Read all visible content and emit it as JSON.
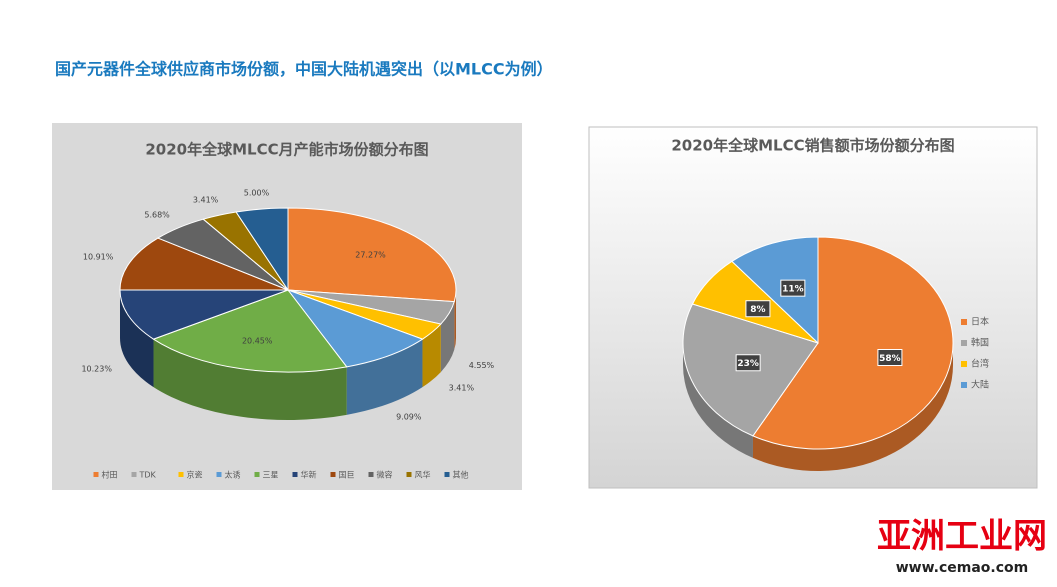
{
  "heading": "国产元器件全球供应商市场份额，中国大陆机遇突出（以MLCC为例）",
  "logo": {
    "name": "亚洲工业网",
    "url": "www.cemao.com"
  },
  "chart_data": [
    {
      "type": "pie",
      "title": "2020年全球MLCC月产能市场份额分布图",
      "categories": [
        "村田",
        "TDK",
        "京瓷",
        "太诱",
        "三星",
        "华新",
        "国巨",
        "微容",
        "风华",
        "其他"
      ],
      "values": [
        27.27,
        4.55,
        3.41,
        9.09,
        20.45,
        10.23,
        10.91,
        5.68,
        3.41,
        5.0
      ],
      "value_labels": [
        "27.27%",
        "4.55%",
        "3.41%",
        "9.09%",
        "20.45%",
        "10.23%",
        "10.91%",
        "5.68%",
        "3.41%",
        "5.00%"
      ],
      "colors": [
        "#ed7d31",
        "#a5a5a5",
        "#ffc000",
        "#5b9bd5",
        "#70ad47",
        "#264478",
        "#9e480e",
        "#636363",
        "#997300",
        "#255e91"
      ],
      "legend": "bottom"
    },
    {
      "type": "pie",
      "title": "2020年全球MLCC销售额市场份额分布图",
      "categories": [
        "日本",
        "韩国",
        "台湾",
        "大陆"
      ],
      "values": [
        58,
        23,
        8,
        11
      ],
      "value_labels": [
        "58%",
        "23%",
        "8%",
        "11%"
      ],
      "colors": [
        "#ed7d31",
        "#a5a5a5",
        "#ffc000",
        "#5b9bd5"
      ],
      "legend": "right"
    }
  ]
}
